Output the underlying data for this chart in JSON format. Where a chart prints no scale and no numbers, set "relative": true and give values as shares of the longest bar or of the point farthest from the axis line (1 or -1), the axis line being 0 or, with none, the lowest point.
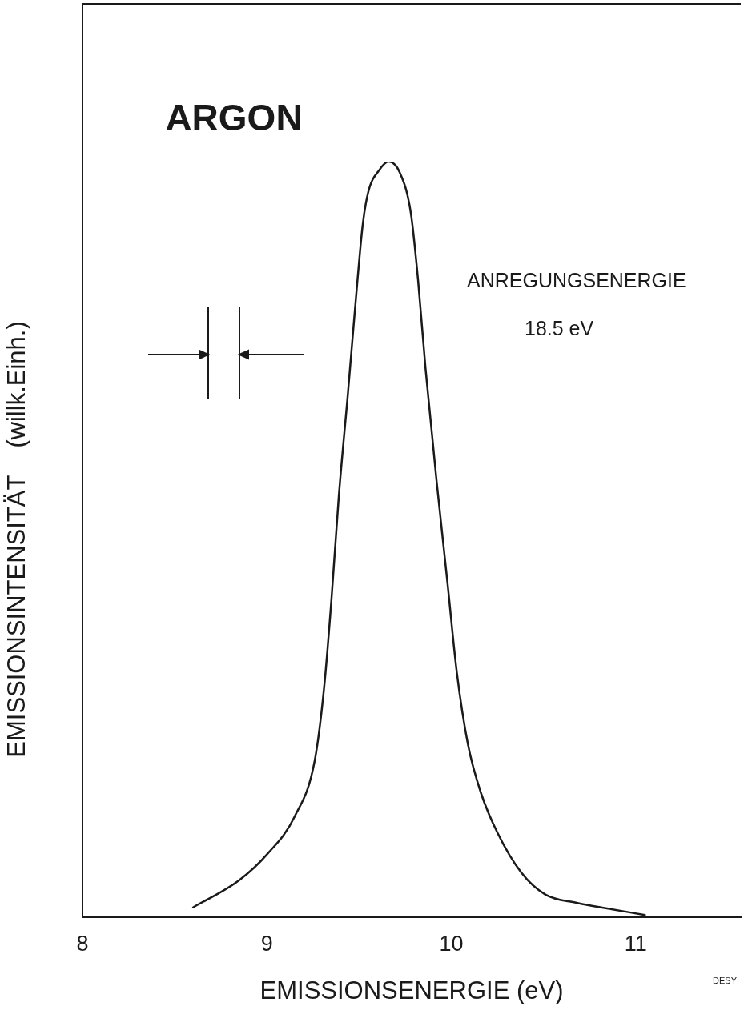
{
  "chart_data": {
    "type": "line",
    "xlabel": "EMISSIONSENERGIE (eV)",
    "ylabel": "EMISSIONSINTENSITÄT    (willk.Einh.)",
    "relative": true,
    "xlim": [
      8,
      11.57
    ],
    "xticks": [
      8,
      9,
      10,
      11
    ],
    "grid": false,
    "legend": false,
    "marker": "none",
    "line_style": "solid",
    "annotations": [
      "ARGON",
      "ANREGUNGSENERGIE",
      "18.5 eV",
      "DESY"
    ],
    "series": [
      {
        "color": "#1a1a1a",
        "x": [
          8.6,
          8.85,
          9.0,
          9.15,
          9.26,
          9.31,
          9.35,
          9.39,
          9.44,
          9.48,
          9.52,
          9.55,
          9.61,
          9.66,
          9.72,
          9.78,
          9.82,
          9.86,
          9.92,
          9.98,
          10.03,
          10.09,
          10.16,
          10.25,
          10.38,
          10.51,
          10.68,
          10.86,
          11.05
        ],
        "values": [
          0.013,
          0.049,
          0.083,
          0.133,
          0.208,
          0.303,
          0.42,
          0.557,
          0.695,
          0.811,
          0.917,
          0.96,
          0.989,
          1,
          0.986,
          0.933,
          0.843,
          0.727,
          0.578,
          0.441,
          0.324,
          0.229,
          0.165,
          0.112,
          0.059,
          0.03,
          0.019,
          0.011,
          0.003
        ]
      }
    ]
  }
}
